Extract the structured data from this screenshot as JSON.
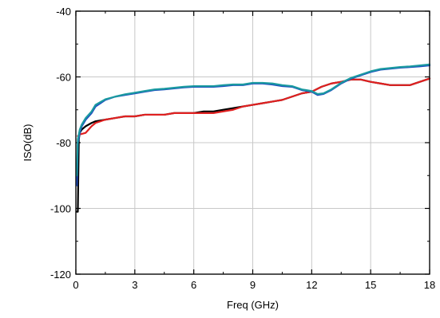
{
  "chart_data": {
    "type": "line",
    "title": "",
    "xlabel": "Freq (GHz)",
    "ylabel": "ISO(dB)",
    "xlim": [
      0,
      18
    ],
    "ylim": [
      -120,
      -40
    ],
    "xticks": [
      0,
      3,
      6,
      9,
      12,
      15,
      18
    ],
    "yticks": [
      -120,
      -100,
      -80,
      -60,
      -40
    ],
    "grid": true,
    "legend": "none",
    "series": [
      {
        "color": "#000000",
        "x": [
          0.05,
          0.1,
          0.15,
          0.2,
          0.3,
          0.5,
          0.8,
          1.0,
          1.5,
          2.0,
          2.5,
          3.0,
          3.5,
          4.0,
          4.5,
          5.0,
          5.5,
          6.0,
          6.5,
          7.0,
          7.5,
          8.0,
          8.5,
          9.0,
          9.5,
          10.0,
          10.5,
          11.0,
          11.5,
          12.0,
          12.5,
          13.0,
          13.5,
          14.0,
          14.5,
          15.0,
          15.5,
          16.0,
          16.5,
          17.0,
          17.5,
          18.0
        ],
        "y": [
          -101,
          -101,
          -79,
          -77,
          -76,
          -75,
          -74,
          -73.5,
          -73,
          -72.5,
          -72,
          -72,
          -71.5,
          -71.5,
          -71.5,
          -71,
          -71,
          -71,
          -70.5,
          -70.5,
          -70,
          -69.5,
          -69,
          -68.5,
          -68,
          -67.5,
          -67,
          -66,
          -65,
          -64.5,
          -63,
          -62,
          -61.5,
          -60.8,
          -60.8,
          -61.5,
          -62,
          -62.5,
          -62.5,
          -62.5,
          -61.5,
          -60.5
        ]
      },
      {
        "color": "#e02020",
        "x": [
          0.1,
          0.2,
          0.5,
          0.8,
          1.0,
          1.5,
          2.0,
          2.5,
          3.0,
          3.5,
          4.0,
          4.5,
          5.0,
          5.5,
          6.0,
          6.5,
          7.0,
          7.5,
          8.0,
          8.5,
          9.0,
          9.5,
          10.0,
          10.5,
          11.0,
          11.5,
          12.0,
          12.5,
          13.0,
          13.5,
          14.0,
          14.5,
          15.0,
          15.5,
          16.0,
          16.5,
          17.0,
          17.5,
          18.0
        ],
        "y": [
          -78,
          -77.5,
          -77,
          -75,
          -74,
          -73,
          -72.5,
          -72,
          -72,
          -71.5,
          -71.5,
          -71.5,
          -71,
          -71,
          -71,
          -71,
          -71,
          -70.5,
          -70,
          -69,
          -68.5,
          -68,
          -67.5,
          -67,
          -66,
          -65,
          -64.5,
          -63,
          -62,
          -61.5,
          -60.8,
          -60.8,
          -61.5,
          -62,
          -62.5,
          -62.5,
          -62.5,
          -61.5,
          -60.5
        ]
      },
      {
        "color": "#1f4fc0",
        "x": [
          0.05,
          0.1,
          0.2,
          0.3,
          0.5,
          0.8,
          1.0,
          1.5,
          2.0,
          2.5,
          3.0,
          3.5,
          4.0,
          4.5,
          5.0,
          5.5,
          6.0,
          6.5,
          7.0,
          7.5,
          8.0,
          8.5,
          9.0,
          9.5,
          10.0,
          10.5,
          11.0,
          11.5,
          12.0,
          12.3,
          12.6,
          13.0,
          13.5,
          14.0,
          14.5,
          15.0,
          15.5,
          16.0,
          16.5,
          17.0,
          17.5,
          18.0
        ],
        "y": [
          -93,
          -80,
          -77,
          -75,
          -73,
          -71,
          -69,
          -67,
          -66,
          -65.5,
          -65,
          -64.5,
          -64,
          -63.8,
          -63.5,
          -63.2,
          -63,
          -63,
          -63,
          -62.8,
          -62.5,
          -62.5,
          -62,
          -62,
          -62.3,
          -62.8,
          -63,
          -64,
          -64.5,
          -65.5,
          -65.2,
          -64,
          -62,
          -60.5,
          -59.5,
          -58.5,
          -57.8,
          -57.5,
          -57.2,
          -57,
          -56.8,
          -56.5
        ]
      },
      {
        "color": "#1a9aa0",
        "x": [
          0.05,
          0.1,
          0.2,
          0.3,
          0.5,
          0.8,
          1.0,
          1.5,
          2.0,
          2.5,
          3.0,
          3.5,
          4.0,
          4.5,
          5.0,
          5.5,
          6.0,
          6.5,
          7.0,
          7.5,
          8.0,
          8.5,
          9.0,
          9.5,
          10.0,
          10.5,
          11.0,
          11.5,
          12.0,
          12.3,
          12.6,
          13.0,
          13.5,
          14.0,
          14.5,
          15.0,
          15.5,
          16.0,
          16.5,
          17.0,
          17.5,
          18.0
        ],
        "y": [
          -90,
          -79,
          -76,
          -74.5,
          -72.5,
          -70.5,
          -68.5,
          -66.8,
          -66,
          -65.3,
          -64.8,
          -64.3,
          -63.8,
          -63.6,
          -63.3,
          -63,
          -62.8,
          -62.8,
          -62.8,
          -62.5,
          -62.3,
          -62.3,
          -61.8,
          -61.8,
          -62,
          -62.5,
          -62.8,
          -63.8,
          -64.3,
          -65.2,
          -65,
          -63.8,
          -61.8,
          -60.3,
          -59.3,
          -58.3,
          -57.6,
          -57.3,
          -57,
          -56.8,
          -56.5,
          -56.2
        ]
      }
    ]
  }
}
